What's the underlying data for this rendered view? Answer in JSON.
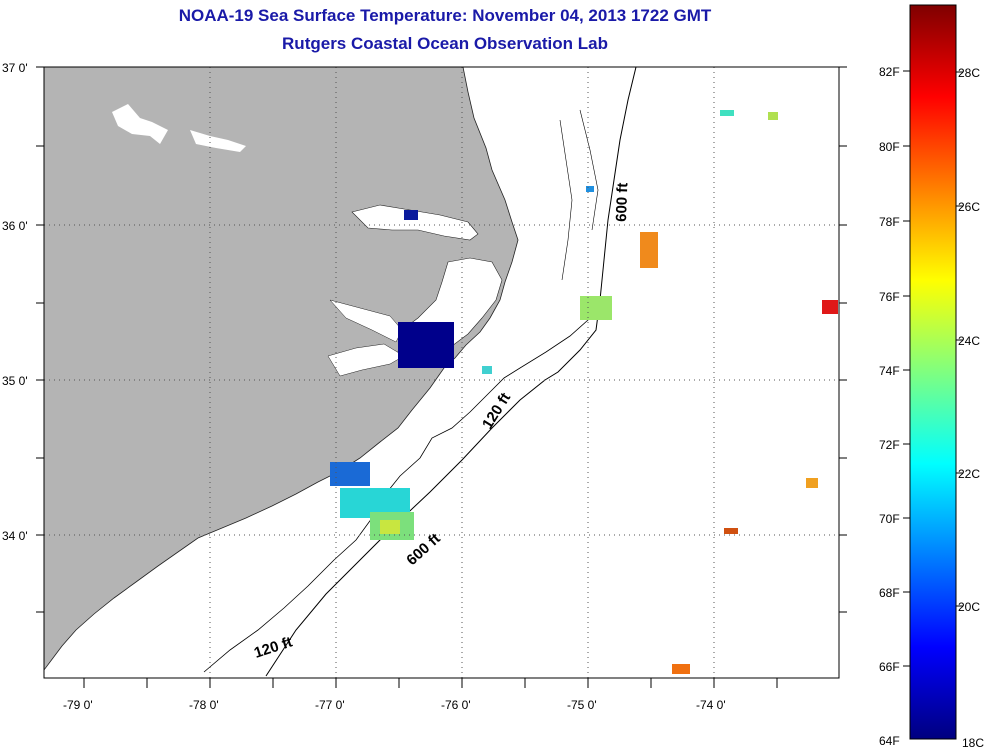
{
  "title": {
    "line1": "NOAA-19 Sea Surface Temperature:  November 04, 2013 1722 GMT",
    "line2": "Rutgers Coastal Ocean Observation Lab"
  },
  "map": {
    "latitude_labels": [
      "37 0'",
      "36 0'",
      "35 0'",
      "34 0'"
    ],
    "latitude_values": [
      37,
      36,
      35,
      34
    ],
    "longitude_labels": [
      "-79 0'",
      "-78 0'",
      "-77 0'",
      "-76 0'",
      "-75 0'",
      "-74 0'"
    ],
    "longitude_values": [
      -79,
      -78,
      -77,
      -76,
      -75,
      -74
    ],
    "isobath_labels": [
      {
        "text": "600 ft",
        "depth": "600 ft"
      },
      {
        "text": "120 ft",
        "depth": "120 ft"
      },
      {
        "text": "600 ft",
        "depth": "600 ft"
      },
      {
        "text": "120 ft",
        "depth": "120 ft"
      }
    ],
    "colors": {
      "land": "#b4b4b4",
      "ocean_nodata": "#ffffff",
      "gridline": "#555555"
    }
  },
  "colorbar": {
    "fahrenheit_labels": [
      "82F",
      "80F",
      "78F",
      "76F",
      "74F",
      "72F",
      "70F",
      "68F",
      "66F",
      "64F"
    ],
    "fahrenheit_values": [
      82,
      80,
      78,
      76,
      74,
      72,
      70,
      68,
      66,
      64
    ],
    "celsius_labels": [
      "28C",
      "26C",
      "24C",
      "22C",
      "20C",
      "18C"
    ],
    "celsius_values": [
      28,
      26,
      24,
      22,
      20,
      18
    ],
    "range_c": [
      18,
      29.4
    ],
    "colormap": "jet"
  }
}
